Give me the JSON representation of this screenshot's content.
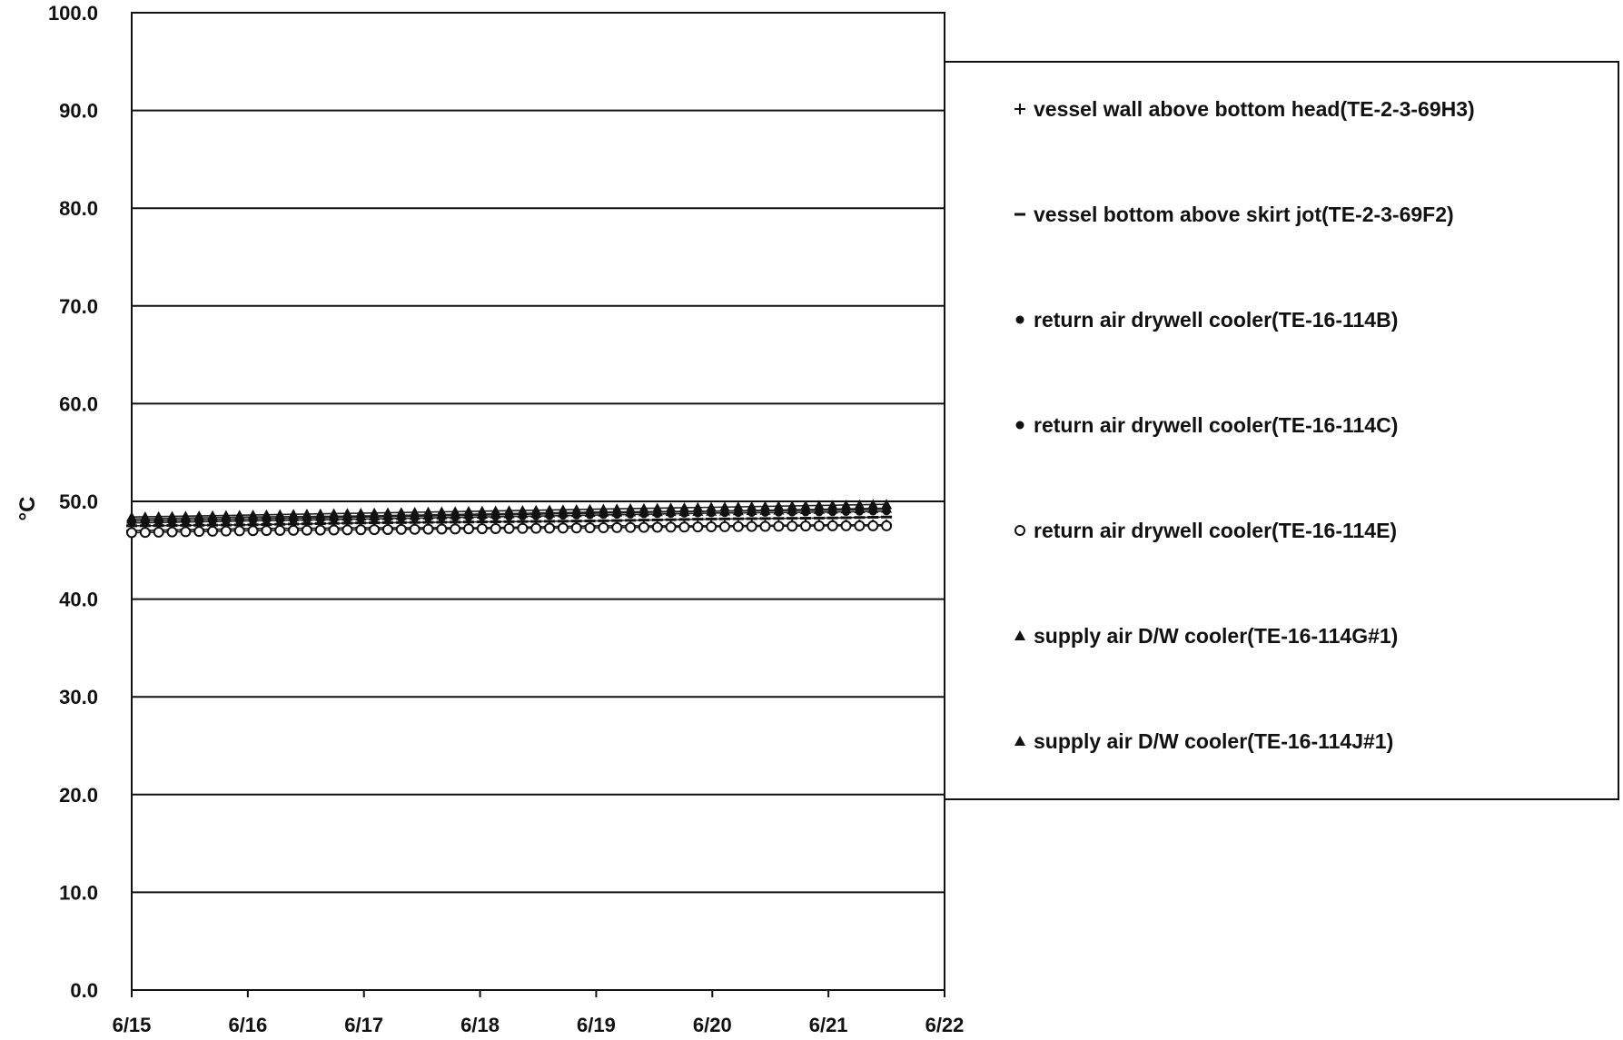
{
  "chart_data": {
    "type": "line",
    "ylabel": "°C",
    "ylim": [
      0,
      100
    ],
    "yticks": [
      "0.0",
      "10.0",
      "20.0",
      "30.0",
      "40.0",
      "50.0",
      "60.0",
      "70.0",
      "80.0",
      "90.0",
      "100.0"
    ],
    "xticks": [
      "6/15",
      "6/16",
      "6/17",
      "6/18",
      "6/19",
      "6/20",
      "6/21",
      "6/22"
    ],
    "xlim": [
      "6/15",
      "6/22"
    ],
    "grid": "horizontal",
    "legend_position": "right",
    "series": [
      {
        "name": "vessel wall above bottom head(TE-2-3-69H3)",
        "marker": "plus",
        "x": [
          "6/15",
          "6/16",
          "6/17",
          "6/18",
          "6/19",
          "6/20",
          "6/21",
          "6/21 12:00"
        ],
        "values": [
          47.0,
          47.2,
          47.3,
          47.3,
          47.5,
          47.5,
          47.6,
          47.6
        ]
      },
      {
        "name": "vessel bottom above skirt jot(TE-2-3-69F2)",
        "marker": "dash",
        "x": [
          "6/15",
          "6/16",
          "6/17",
          "6/18",
          "6/19",
          "6/20",
          "6/21",
          "6/21 12:00"
        ],
        "values": [
          47.5,
          47.6,
          47.8,
          47.9,
          48.0,
          48.2,
          48.3,
          48.4
        ]
      },
      {
        "name": "return air drywell cooler(TE-16-114B)",
        "marker": "dot",
        "x": [
          "6/15",
          "6/16",
          "6/17",
          "6/18",
          "6/19",
          "6/20",
          "6/21",
          "6/21 12:00"
        ],
        "values": [
          48.0,
          48.2,
          48.4,
          48.6,
          48.8,
          49.0,
          49.1,
          49.2
        ]
      },
      {
        "name": "return air drywell cooler(TE-16-114C)",
        "marker": "dot",
        "x": [
          "6/15",
          "6/16",
          "6/17",
          "6/18",
          "6/19",
          "6/20",
          "6/21",
          "6/21 12:00"
        ],
        "values": [
          47.8,
          48.0,
          48.2,
          48.4,
          48.6,
          48.8,
          48.9,
          49.0
        ]
      },
      {
        "name": "return air drywell cooler(TE-16-114E)",
        "marker": "circle",
        "x": [
          "6/15",
          "6/16",
          "6/17",
          "6/18",
          "6/19",
          "6/20",
          "6/21",
          "6/21 12:00"
        ],
        "values": [
          46.8,
          47.0,
          47.1,
          47.2,
          47.3,
          47.4,
          47.5,
          47.5
        ]
      },
      {
        "name": "supply air D/W cooler(TE-16-114G#1)",
        "marker": "triangle",
        "x": [
          "6/15",
          "6/16",
          "6/17",
          "6/18",
          "6/19",
          "6/20",
          "6/21",
          "6/21 12:00"
        ],
        "values": [
          48.4,
          48.6,
          48.8,
          49.0,
          49.2,
          49.4,
          49.6,
          49.7
        ]
      },
      {
        "name": "supply air D/W cooler(TE-16-114J#1)",
        "marker": "triangle",
        "x": [
          "6/15",
          "6/16",
          "6/17",
          "6/18",
          "6/19",
          "6/20",
          "6/21",
          "6/21 12:00"
        ],
        "values": [
          48.2,
          48.4,
          48.5,
          48.7,
          48.9,
          49.0,
          49.2,
          49.3
        ]
      }
    ]
  }
}
